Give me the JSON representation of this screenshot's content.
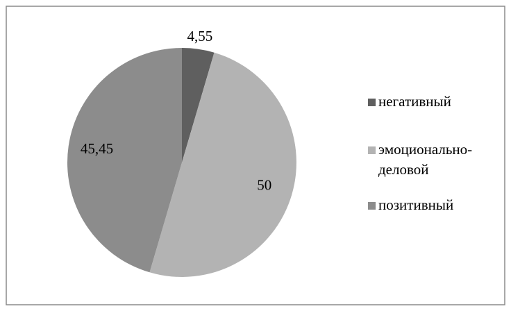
{
  "chart_data": {
    "type": "pie",
    "categories": [
      "негативный",
      "эмоционально-деловой",
      "позитивный"
    ],
    "values": [
      4.55,
      50,
      45.45
    ],
    "value_labels": [
      "4,55",
      "50",
      "45,45"
    ],
    "colors": [
      "#5f5f5f",
      "#b3b3b3",
      "#8c8c8c"
    ],
    "legend": "right"
  }
}
